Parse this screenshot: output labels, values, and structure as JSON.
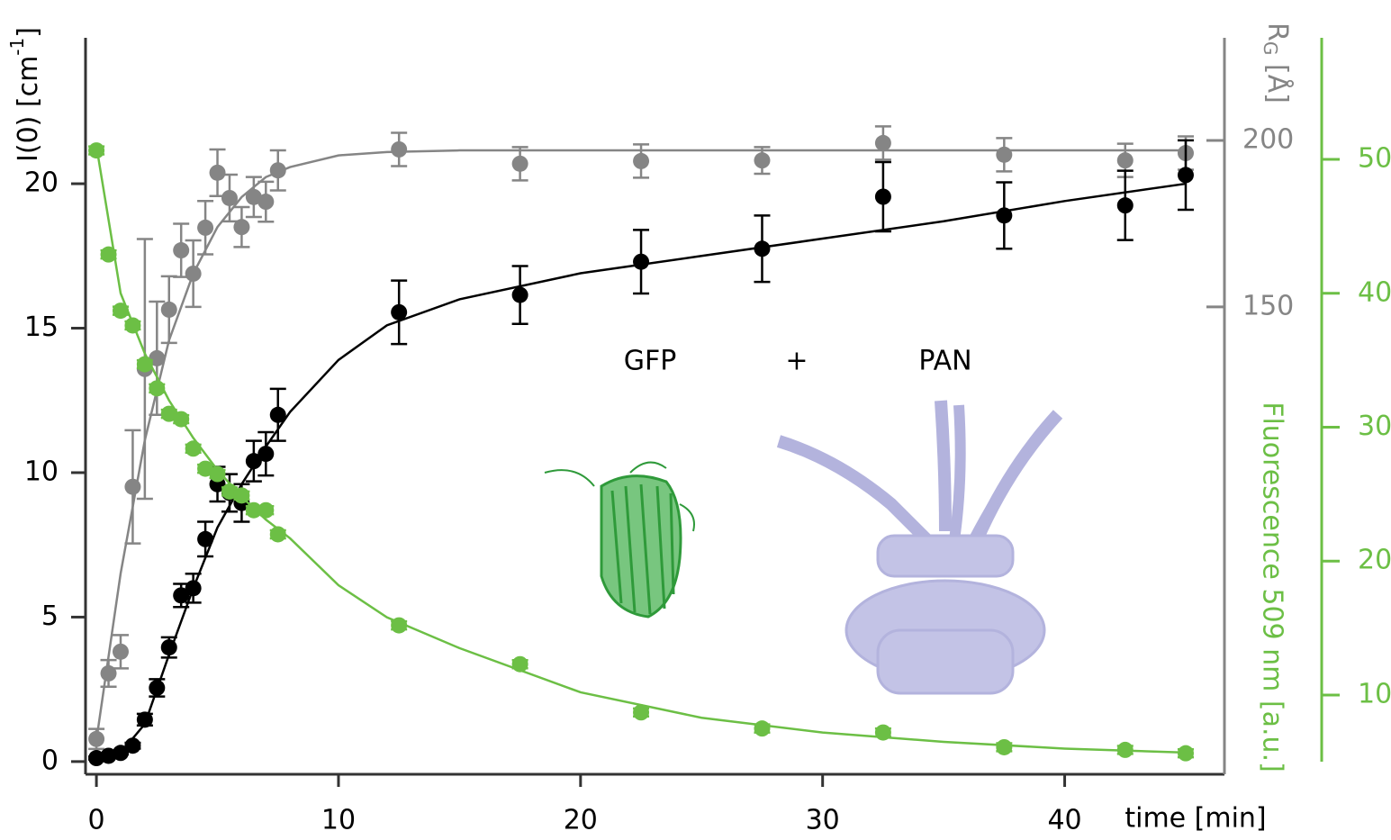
{
  "chart_data": {
    "type": "scatter",
    "x_label": "time [min]",
    "y_label": {
      "main": "I(0) [cm",
      "sup": "-1",
      "end": "]"
    },
    "y2_label": {
      "main": "R",
      "sub": "G",
      "end": " [Å]"
    },
    "y3_label": "Fluorescence 509 nm [a.u.]",
    "annotations": [
      "GFP",
      "+",
      "PAN"
    ],
    "xlim": [
      -0.45,
      46.6
    ],
    "xticks": [
      0,
      10,
      20,
      30,
      40
    ],
    "ylim": [
      -0.44,
      25.05
    ],
    "yticks": [
      0,
      5,
      10,
      15,
      20
    ],
    "y2lim": [
      9.7,
      230.8
    ],
    "y2ticks": [
      150,
      200
    ],
    "y3lim": [
      4.08,
      59.08
    ],
    "y3ticks": [
      10,
      20,
      30,
      40,
      50
    ],
    "x": [
      0,
      0.5,
      1,
      1.5,
      2,
      2.5,
      3,
      3.5,
      4,
      4.5,
      5,
      5.5,
      6,
      6.5,
      7,
      7.5,
      12.5,
      17.5,
      22.5,
      27.5,
      32.5,
      37.5,
      42.5,
      45
    ],
    "fit_x": [
      0,
      1,
      2,
      3,
      4,
      5,
      6,
      7,
      8,
      10,
      12,
      15,
      20,
      25,
      30,
      35,
      40,
      45
    ],
    "series": [
      {
        "color": "#858585",
        "axis": "y2",
        "values": [
          20.3,
          40,
          46.5,
          96,
          131.4,
          134.6,
          149.2,
          167,
          160,
          173.8,
          190.3,
          182.7,
          174,
          183,
          181.6,
          191,
          197.3,
          193,
          193.8,
          194,
          199.2,
          195.7,
          194,
          196.2
        ],
        "errors": [
          3,
          4,
          5,
          17,
          39,
          17,
          10,
          8,
          10,
          8,
          7,
          7,
          6,
          6,
          6,
          6,
          5,
          5,
          5,
          4,
          5,
          5,
          5,
          5
        ],
        "fit": [
          20,
          70,
          110,
          140,
          160,
          174,
          183,
          189,
          192,
          195.5,
          196.5,
          197,
          197,
          197,
          197,
          197,
          197,
          197
        ]
      },
      {
        "color": "#000000",
        "axis": "y",
        "values": [
          0.12,
          0.2,
          0.3,
          0.55,
          1.45,
          2.55,
          3.95,
          5.75,
          6.0,
          7.7,
          9.6,
          9.3,
          8.95,
          10.4,
          10.65,
          12.0,
          15.55,
          16.15,
          17.3,
          17.75,
          19.55,
          18.9,
          19.25,
          20.3
        ],
        "errors": [
          0.05,
          0.05,
          0.05,
          0.1,
          0.2,
          0.3,
          0.35,
          0.4,
          0.5,
          0.6,
          0.6,
          0.65,
          0.65,
          0.7,
          0.75,
          0.9,
          1.1,
          1.0,
          1.1,
          1.15,
          1.2,
          1.15,
          1.2,
          1.2
        ],
        "fit": [
          0.1,
          0.3,
          1.3,
          3.7,
          6.0,
          8.1,
          9.6,
          10.9,
          12.1,
          13.9,
          15.1,
          16.0,
          16.9,
          17.5,
          18.1,
          18.7,
          19.4,
          20.0
        ]
      },
      {
        "color": "#6cbf45",
        "axis": "y3",
        "values": [
          50.67,
          42.9,
          38.7,
          37.6,
          34.7,
          32.9,
          31,
          30.6,
          28.4,
          26.9,
          26.5,
          25.2,
          24.9,
          23.8,
          23.8,
          22.0,
          15.2,
          12.3,
          8.7,
          7.5,
          7.2,
          6.1,
          5.9,
          5.65
        ],
        "errors": [
          0.3,
          0.3,
          0.3,
          0.3,
          0.3,
          0.3,
          0.3,
          0.3,
          0.3,
          0.3,
          0.3,
          0.3,
          0.3,
          0.3,
          0.3,
          0.3,
          0.3,
          0.3,
          0.3,
          0.3,
          0.3,
          0.3,
          0.3,
          0.3
        ],
        "fit": [
          51,
          40,
          35.5,
          32,
          29.2,
          26.8,
          24.8,
          23.1,
          21.7,
          18.2,
          15.8,
          13.5,
          10.2,
          8.3,
          7.2,
          6.5,
          6.0,
          5.7
        ]
      }
    ]
  }
}
